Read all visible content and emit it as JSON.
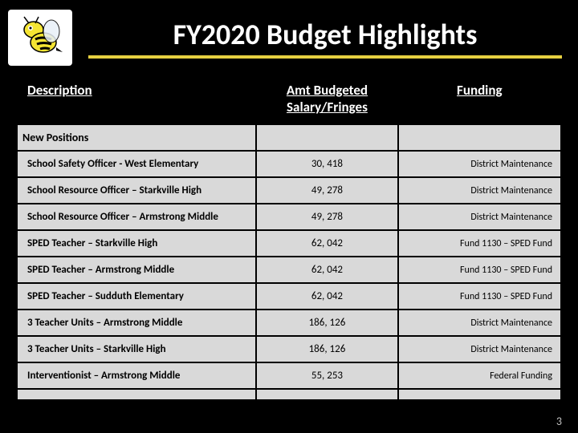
{
  "title": "FY2020 Budget Highlights",
  "columns": [
    "Description",
    "Amt Budgeted Salary/Fringes",
    "Funding"
  ],
  "section_label": "New Positions",
  "rows": [
    {
      "desc": "School Safety Officer - West Elementary",
      "amt": "30, 418",
      "fund": "District Maintenance"
    },
    {
      "desc": "School Resource Officer – Starkville High",
      "amt": "49, 278",
      "fund": "District Maintenance"
    },
    {
      "desc": "School Resource Officer – Armstrong Middle",
      "amt": "49, 278",
      "fund": "District Maintenance"
    },
    {
      "desc": "SPED Teacher – Starkville High",
      "amt": "62, 042",
      "fund": "Fund 1130 – SPED Fund"
    },
    {
      "desc": "SPED Teacher – Armstrong Middle",
      "amt": "62, 042",
      "fund": "Fund 1130 – SPED Fund"
    },
    {
      "desc": "SPED Teacher – Sudduth Elementary",
      "amt": "62, 042",
      "fund": "Fund 1130 – SPED Fund"
    },
    {
      "desc": "3 Teacher Units – Armstrong Middle",
      "amt": "186, 126",
      "fund": "District Maintenance"
    },
    {
      "desc": "3 Teacher Units – Starkville High",
      "amt": "186, 126",
      "fund": "District Maintenance"
    },
    {
      "desc": "Interventionist – Armstrong Middle",
      "amt": "55, 253",
      "fund": "Federal Funding"
    }
  ],
  "page_number": "3",
  "colors": {
    "background": "#000000",
    "title_text": "#ffffff",
    "underline": "#e6d040",
    "cell_bg": "#d9d9d9",
    "page_num": "#bfbfbf",
    "logo_body": "#f5e533",
    "logo_stripe": "#000000"
  }
}
